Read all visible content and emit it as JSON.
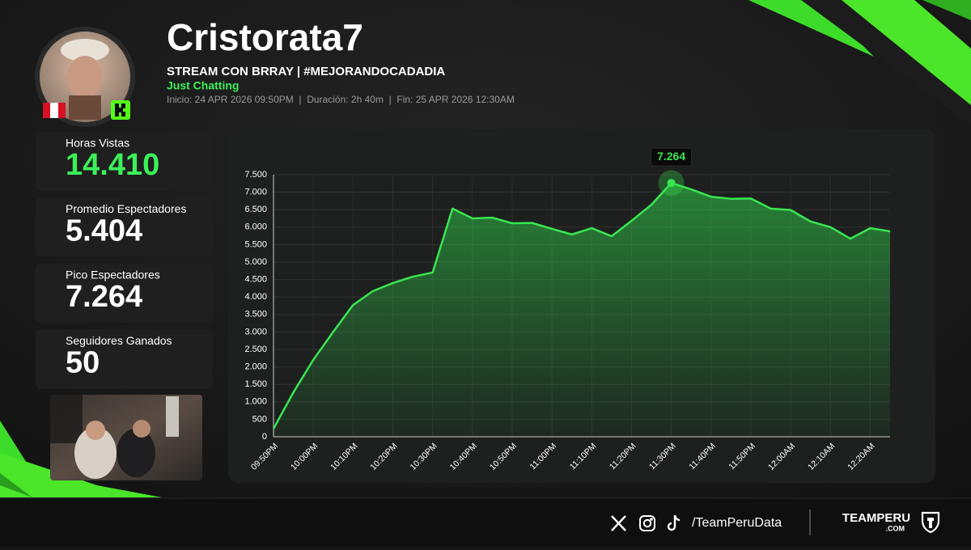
{
  "header": {
    "name": "Cristorata7",
    "stream_title": "STREAM CON BRRAY | #MEJORANDOCADADIA",
    "category": "Just Chatting",
    "meta": "Inicio: 24 APR 2026 09:50PM  |  Duración: 2h 40m  |  Fin: 25 APR 2026 12:30AM"
  },
  "stats": [
    {
      "label": "Horas Vistas",
      "value": "14.410"
    },
    {
      "label": "Promedio Espectadores",
      "value": "5.404"
    },
    {
      "label": "Pico Espectadores",
      "value": "7.264"
    },
    {
      "label": "Seguidores Ganados",
      "value": "50"
    }
  ],
  "chart_data": {
    "type": "area",
    "categories": [
      "09:50PM",
      null,
      "10:00PM",
      null,
      "10:10PM",
      null,
      "10:20PM",
      null,
      "10:30PM",
      null,
      "10:40PM",
      null,
      "10:50PM",
      null,
      "11:00PM",
      null,
      "11:10PM",
      null,
      "11:20PM",
      null,
      "11:30PM",
      null,
      "11:40PM",
      null,
      "11:50PM",
      null,
      "12:00AM",
      null,
      "12:10AM",
      null,
      "12:20AM",
      null
    ],
    "series": [
      {
        "color": "#39e650",
        "values": [
          230,
          1270,
          2200,
          3000,
          3770,
          4170,
          4400,
          4580,
          4700,
          6530,
          6250,
          6270,
          6110,
          6120,
          5950,
          5790,
          5970,
          5740,
          6180,
          6640,
          7264,
          7080,
          6870,
          6810,
          6820,
          6530,
          6490,
          6160,
          6000,
          5670,
          5970,
          5880
        ]
      }
    ],
    "peak_label": "7.264",
    "ylim": [
      0,
      7500
    ],
    "yticks": [
      0,
      500,
      {
        "value": 1000,
        "label": "1.000"
      },
      {
        "value": 1500,
        "label": "1.500"
      },
      {
        "value": 2000,
        "label": "2.000"
      },
      {
        "value": 2500,
        "label": "2.500"
      },
      {
        "value": 3000,
        "label": "3.000"
      },
      {
        "value": 3500,
        "label": "3.500"
      },
      {
        "value": 4000,
        "label": "4.000"
      },
      {
        "value": 4500,
        "label": "4.500"
      },
      {
        "value": 5000,
        "label": "5.000"
      },
      {
        "value": 5500,
        "label": "5.500"
      },
      {
        "value": 6000,
        "label": "6.000"
      },
      {
        "value": 6500,
        "label": "6.500"
      },
      {
        "value": 7000,
        "label": "7.000"
      },
      {
        "value": 7500,
        "label": "7.500"
      }
    ],
    "grid": true
  },
  "footer": {
    "handle": "/TeamPeruData",
    "brand": "TEAMPERU",
    "brand_suffix": ".COM"
  }
}
